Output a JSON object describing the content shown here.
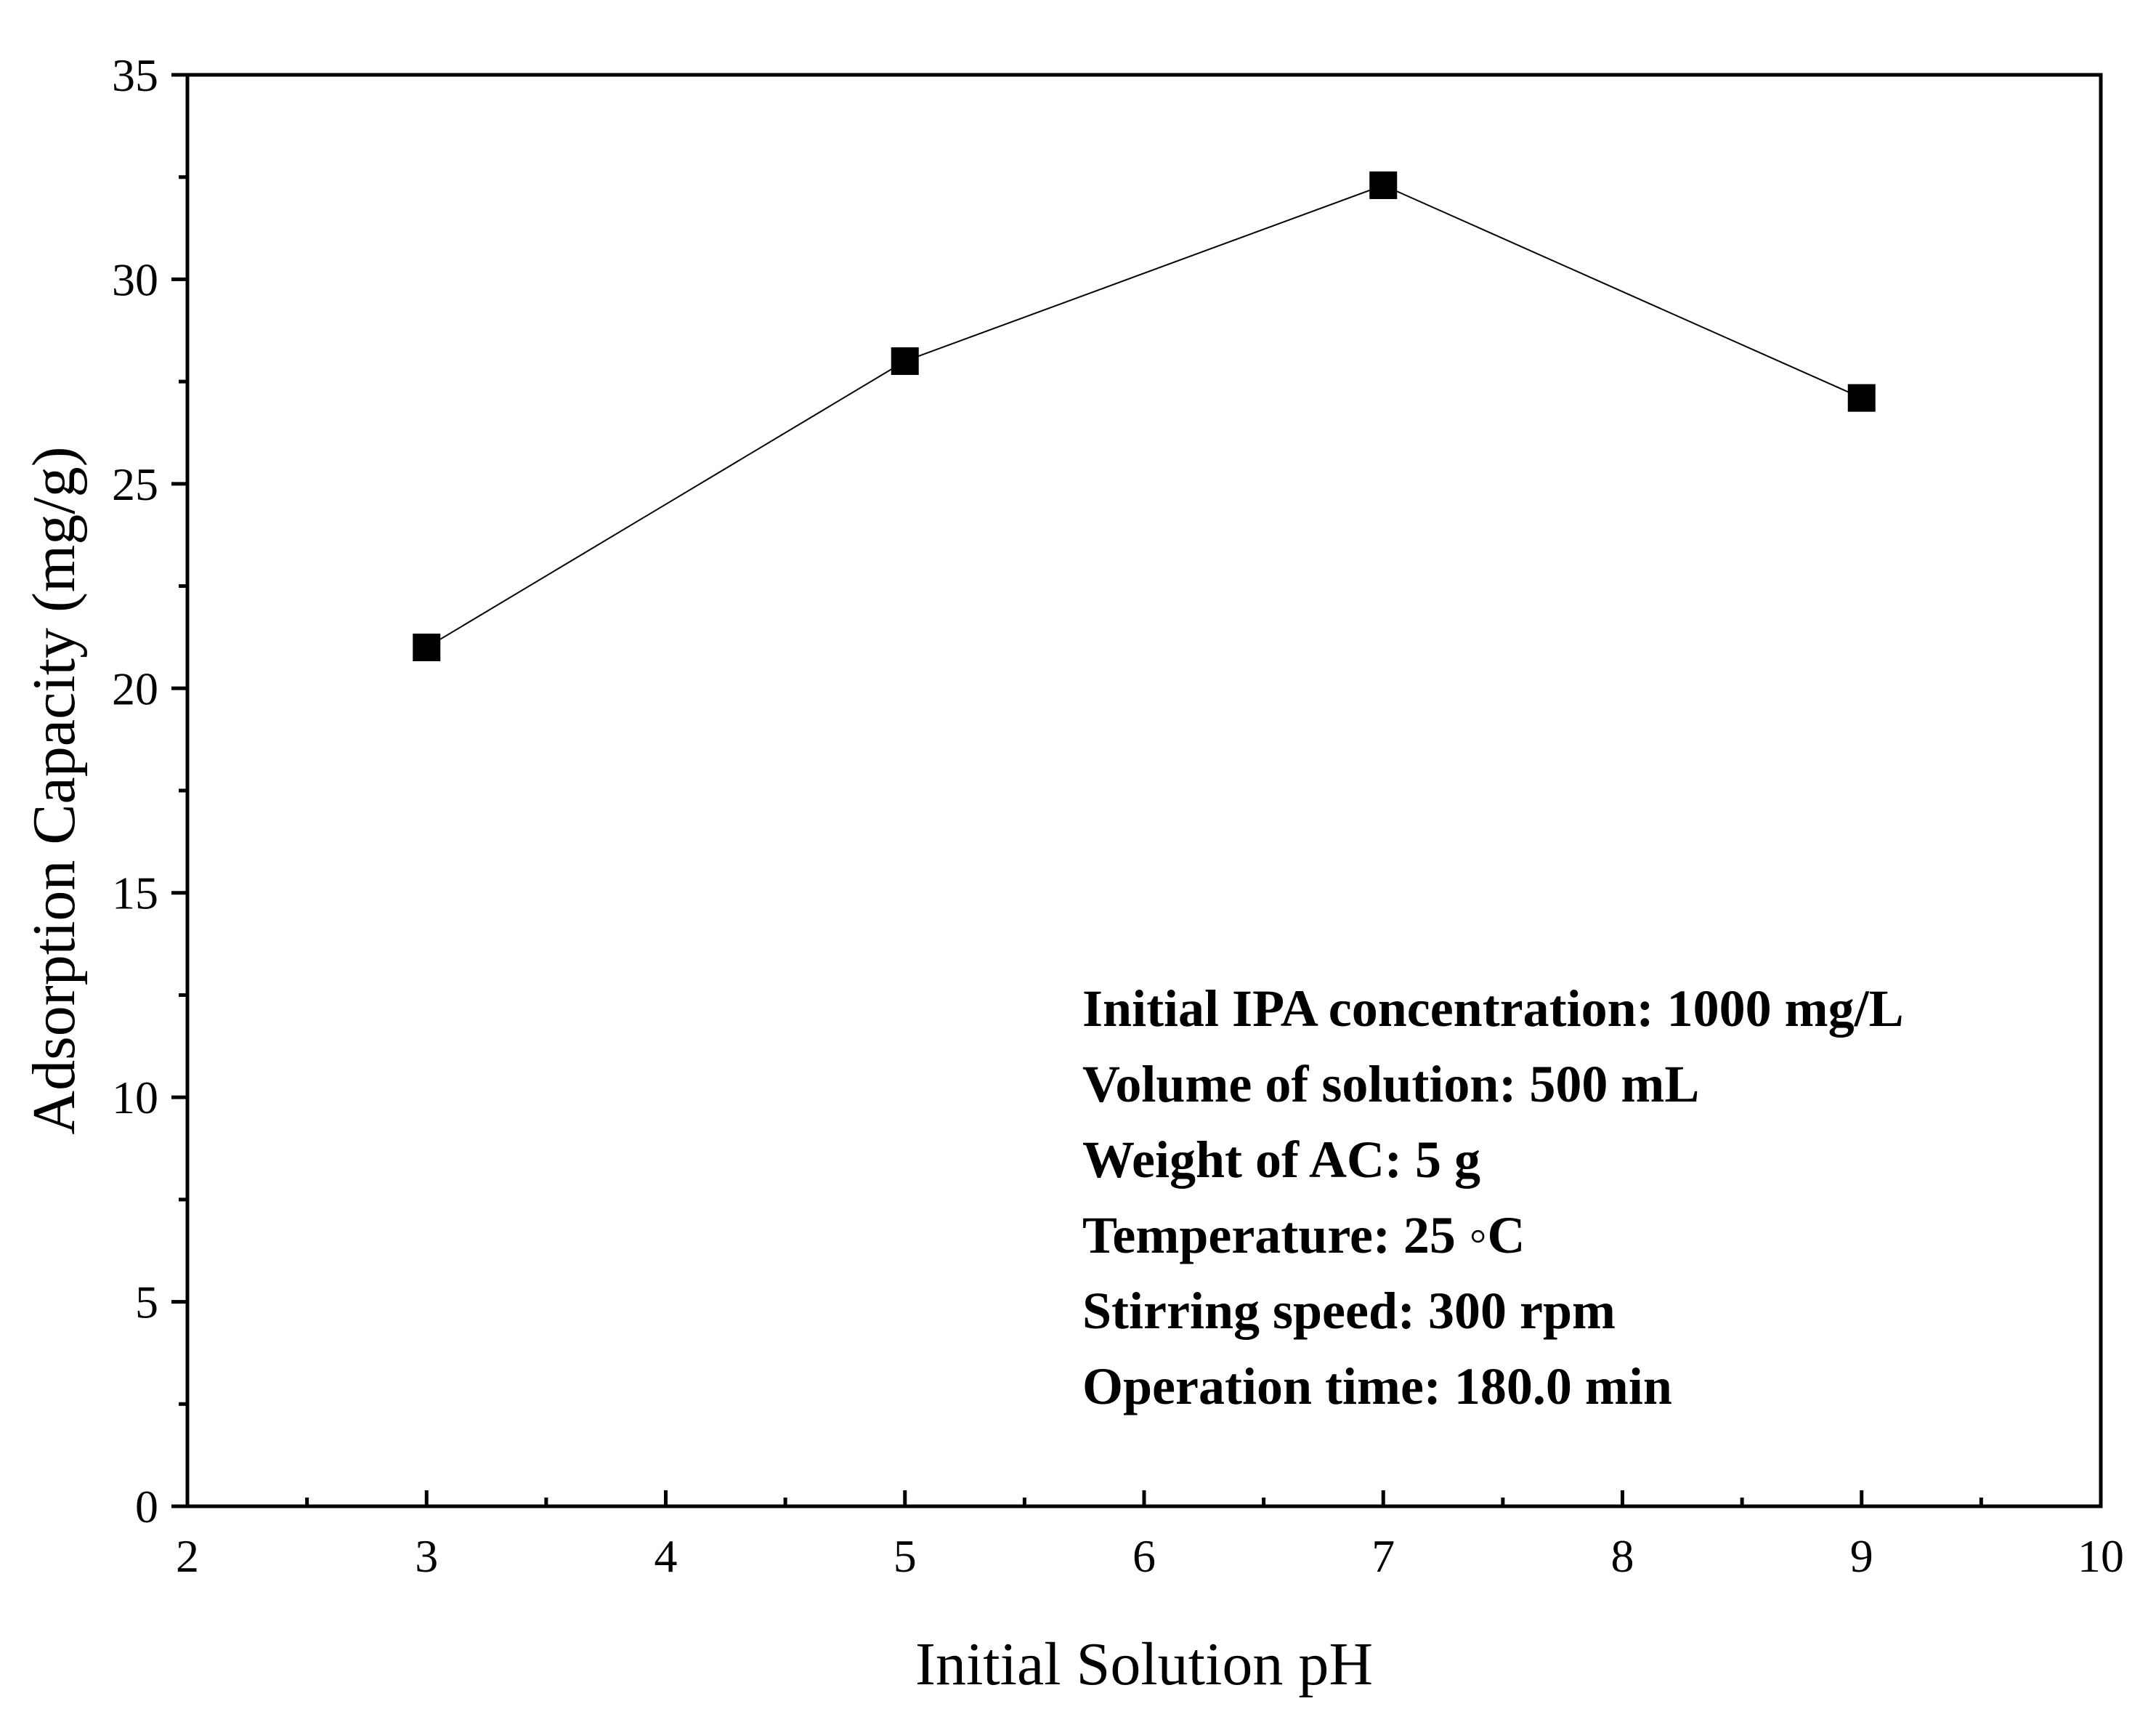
{
  "chart_data": {
    "type": "line",
    "title": "",
    "xlabel": "Initial Solution pH",
    "ylabel": "Adsorption Capacity (mg/g)",
    "xlim": [
      2,
      10
    ],
    "ylim": [
      0,
      35
    ],
    "x_major_ticks": [
      2,
      3,
      4,
      5,
      6,
      7,
      8,
      9,
      10
    ],
    "x_tick_labels": [
      "2",
      "3",
      "4",
      "5",
      "6",
      "7",
      "8",
      "9",
      "10"
    ],
    "x_minor_ticks": [
      2.5,
      3.5,
      4.5,
      5.5,
      6.5,
      7.5,
      8.5,
      9.5
    ],
    "y_major_ticks": [
      0,
      5,
      10,
      15,
      20,
      25,
      30,
      35
    ],
    "y_tick_labels": [
      "0",
      "5",
      "10",
      "15",
      "20",
      "25",
      "30",
      "35"
    ],
    "y_minor_ticks": [
      2.5,
      7.5,
      12.5,
      17.5,
      22.5,
      27.5,
      32.5
    ],
    "grid": false,
    "legend": "none",
    "series": [
      {
        "name": "Adsorption Capacity",
        "marker": "filled-square",
        "color": "#000000",
        "x": [
          3,
          5,
          7,
          9
        ],
        "values": [
          21.0,
          28.0,
          32.3,
          27.1
        ]
      }
    ],
    "annotations": [
      "Initial IPA concentration: 1000 mg/L",
      "Volume of solution: 500 mL",
      "Weight of AC: 5 g",
      "Temperature: 25 ◦C",
      "Stirring speed: 300 rpm",
      "Operation time: 180.0 min"
    ]
  }
}
